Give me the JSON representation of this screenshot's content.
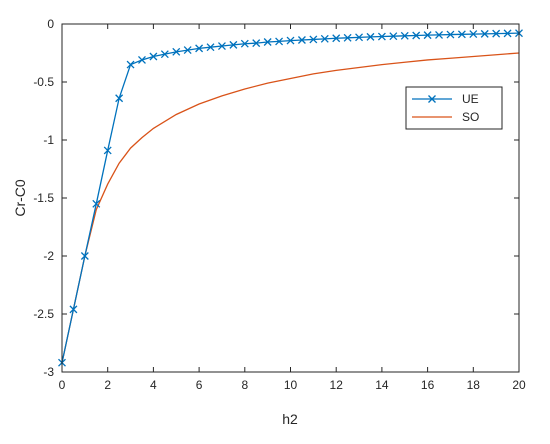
{
  "chart_data": {
    "type": "line",
    "title": "",
    "xlabel": "h2",
    "ylabel": "Cr-C0",
    "xlim": [
      0,
      20
    ],
    "ylim": [
      -3,
      0
    ],
    "x_ticks": [
      0,
      2,
      4,
      6,
      8,
      10,
      12,
      14,
      16,
      18,
      20
    ],
    "y_ticks": [
      0,
      -0.5,
      -1,
      -1.5,
      -2,
      -2.5,
      -3
    ],
    "grid": false,
    "legend_position": "upper-right",
    "series": [
      {
        "name": "UE",
        "color": "#0072BD",
        "marker": "x",
        "x": [
          0,
          0.5,
          1,
          1.5,
          2,
          2.5,
          3,
          3.5,
          4,
          4.5,
          5,
          5.5,
          6,
          6.5,
          7,
          7.5,
          8,
          8.5,
          9,
          9.5,
          10,
          10.5,
          11,
          11.5,
          12,
          12.5,
          13,
          13.5,
          14,
          14.5,
          15,
          15.5,
          16,
          16.5,
          17,
          17.5,
          18,
          18.5,
          19,
          19.5,
          20
        ],
        "y": [
          -2.92,
          -2.46,
          -2.0,
          -1.55,
          -1.09,
          -0.64,
          -0.35,
          -0.31,
          -0.28,
          -0.26,
          -0.24,
          -0.225,
          -0.21,
          -0.2,
          -0.19,
          -0.18,
          -0.17,
          -0.165,
          -0.155,
          -0.15,
          -0.143,
          -0.138,
          -0.133,
          -0.128,
          -0.123,
          -0.119,
          -0.115,
          -0.111,
          -0.108,
          -0.105,
          -0.102,
          -0.099,
          -0.096,
          -0.094,
          -0.091,
          -0.089,
          -0.087,
          -0.085,
          -0.083,
          -0.081,
          -0.079
        ]
      },
      {
        "name": "SO",
        "color": "#D95319",
        "marker": "none",
        "x": [
          0,
          0.5,
          1,
          1.5,
          2,
          2.5,
          3,
          3.5,
          4,
          5,
          6,
          7,
          8,
          9,
          10,
          11,
          12,
          13,
          14,
          15,
          16,
          17,
          18,
          19,
          20
        ],
        "y": [
          -2.92,
          -2.46,
          -2.0,
          -1.6,
          -1.38,
          -1.2,
          -1.07,
          -0.98,
          -0.9,
          -0.78,
          -0.69,
          -0.62,
          -0.56,
          -0.51,
          -0.47,
          -0.43,
          -0.4,
          -0.375,
          -0.35,
          -0.33,
          -0.31,
          -0.295,
          -0.28,
          -0.265,
          -0.25
        ]
      }
    ]
  }
}
